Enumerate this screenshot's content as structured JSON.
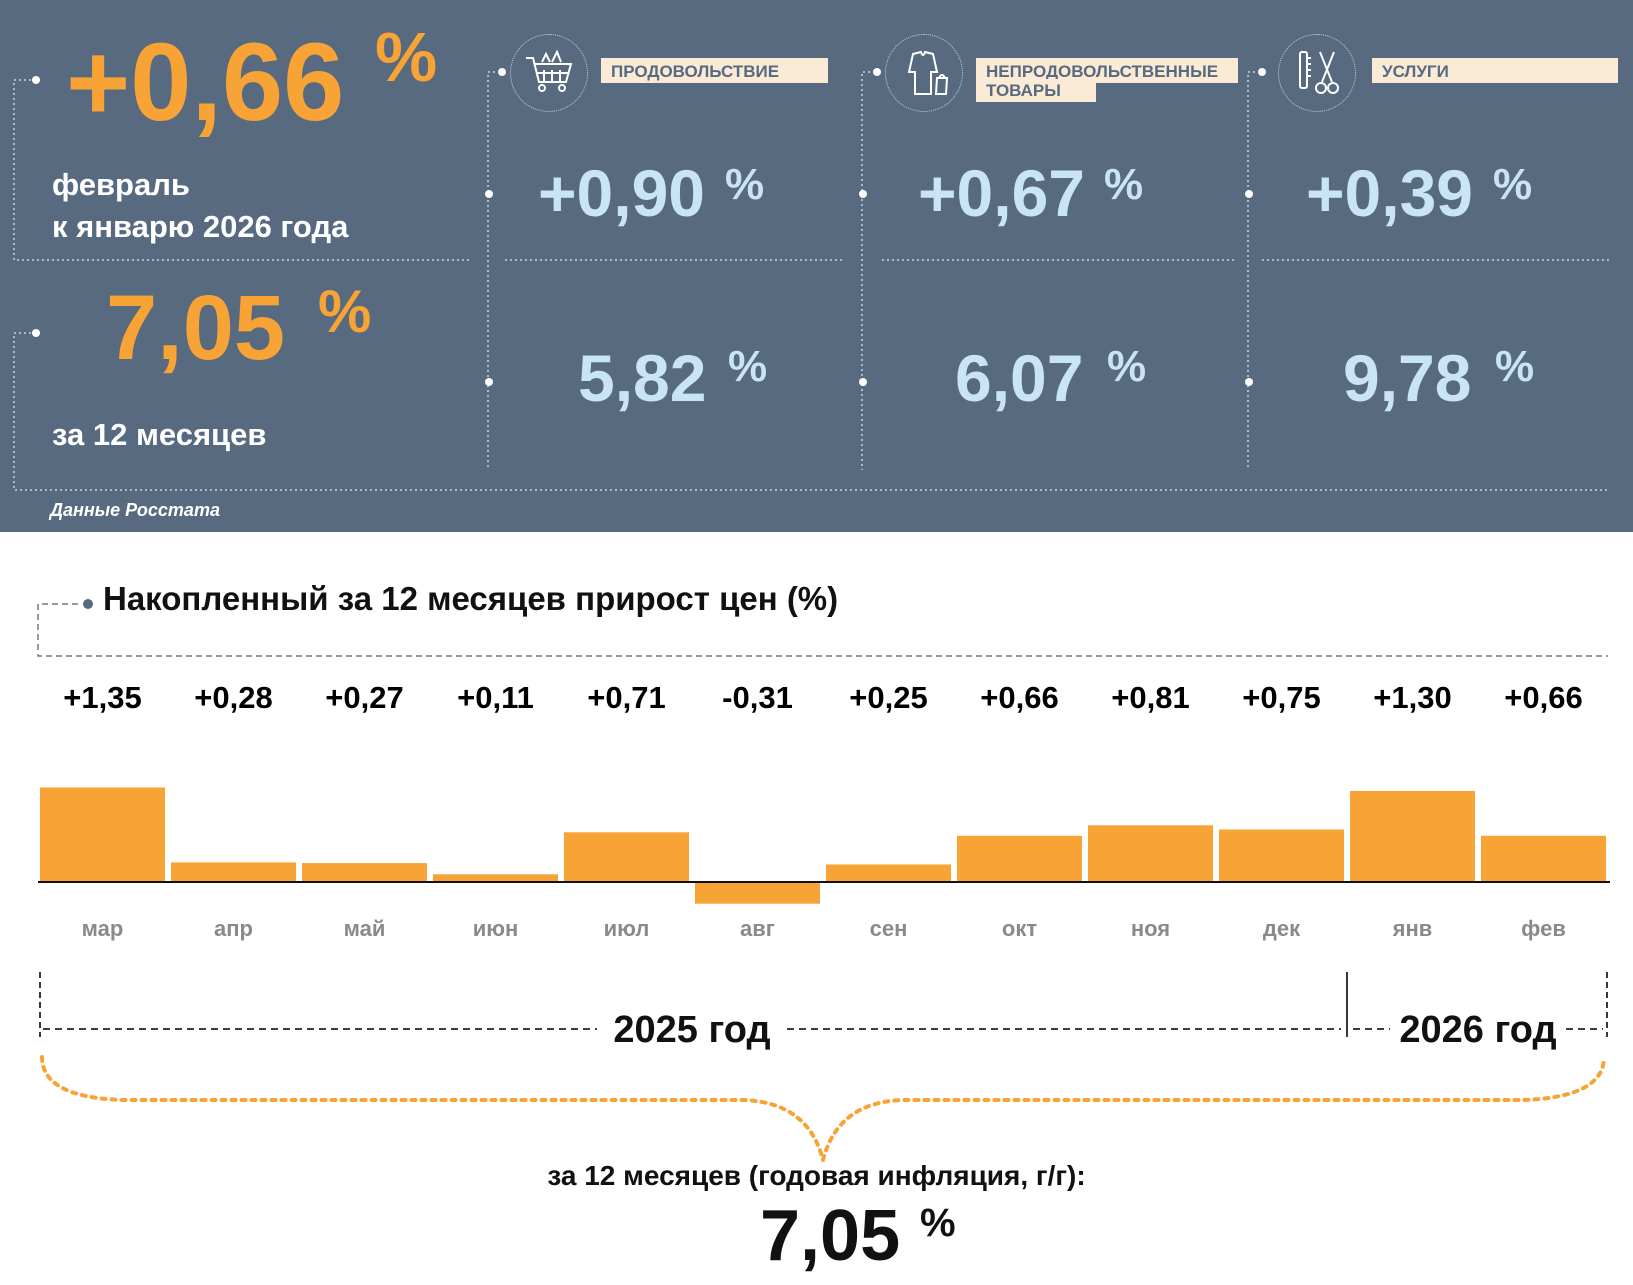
{
  "header": {
    "monthly": {
      "value": "+0,66",
      "unit": "%",
      "line1": "февраль",
      "line2": "к январю 2026 года"
    },
    "annual": {
      "value": "7,05",
      "unit": "%",
      "label": "за 12 месяцев"
    },
    "source": "Данные Росстата",
    "categories": [
      {
        "name": "ПРОДОВОЛЬСТВИЕ",
        "icon": "shopping-cart-icon",
        "monthly": "+0,90",
        "annual": "5,82",
        "unit": "%"
      },
      {
        "name_line1": "НЕПРОДОВОЛЬСТВЕННЫЕ",
        "name_line2": "ТОВАРЫ",
        "icon": "clothes-icon",
        "monthly": "+0,67",
        "annual": "6,07",
        "unit": "%"
      },
      {
        "name": "УСЛУГИ",
        "icon": "scissors-comb-icon",
        "monthly": "+0,39",
        "annual": "9,78",
        "unit": "%"
      }
    ]
  },
  "colors": {
    "panel": "#576a80",
    "accent": "#f7a335",
    "light_blue": "#c9e4f2",
    "tag_bg": "#fbead5"
  },
  "chart_data": {
    "type": "bar",
    "title": "Накопленный за 12 месяцев прирост цен (%)",
    "categories": [
      "мар",
      "апр",
      "май",
      "июн",
      "июл",
      "авг",
      "сен",
      "окт",
      "ноя",
      "дек",
      "янв",
      "фев"
    ],
    "values": [
      1.35,
      0.28,
      0.27,
      0.11,
      0.71,
      -0.31,
      0.25,
      0.66,
      0.81,
      0.75,
      1.3,
      0.66
    ],
    "value_labels": [
      "+1,35",
      "+0,28",
      "+0,27",
      "+0,11",
      "+0,71",
      "-0,31",
      "+0,25",
      "+0,66",
      "+0,81",
      "+0,75",
      "+1,30",
      "+0,66"
    ],
    "year_groups": [
      {
        "label": "2025 год",
        "start": 0,
        "end": 9
      },
      {
        "label": "2026 год",
        "start": 10,
        "end": 11
      }
    ],
    "annual_caption": "за 12 месяцев (годовая инфляция, г/г):",
    "annual_value": "7,05",
    "annual_unit": "%"
  }
}
